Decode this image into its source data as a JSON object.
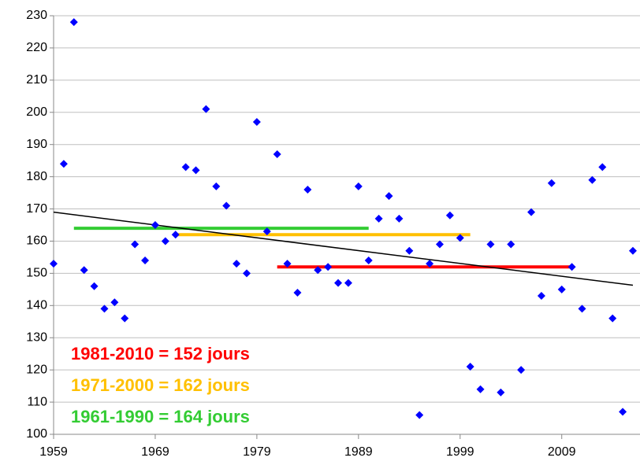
{
  "chart_data": {
    "type": "scatter",
    "x": [
      1959,
      1960,
      1961,
      1962,
      1963,
      1964,
      1965,
      1966,
      1967,
      1968,
      1969,
      1970,
      1971,
      1972,
      1973,
      1974,
      1975,
      1976,
      1977,
      1978,
      1979,
      1980,
      1981,
      1982,
      1983,
      1984,
      1985,
      1986,
      1987,
      1988,
      1989,
      1990,
      1991,
      1992,
      1993,
      1994,
      1995,
      1996,
      1997,
      1998,
      1999,
      2000,
      2001,
      2002,
      2003,
      2004,
      2005,
      2006,
      2007,
      2008,
      2009,
      2010,
      2011,
      2012,
      2013,
      2014,
      2015,
      2016
    ],
    "values": [
      153,
      184,
      228,
      151,
      146,
      139,
      141,
      136,
      159,
      154,
      165,
      160,
      162,
      183,
      182,
      201,
      177,
      171,
      153,
      150,
      197,
      163,
      187,
      153,
      144,
      176,
      151,
      152,
      147,
      147,
      177,
      154,
      167,
      174,
      167,
      157,
      106,
      153,
      159,
      168,
      161,
      121,
      114,
      159,
      113,
      159,
      120,
      169,
      143,
      178,
      145,
      152,
      139,
      179,
      183,
      136,
      107,
      157
    ],
    "color": "#0000ff",
    "trend": {
      "x": [
        1959,
        2016
      ],
      "values": [
        169,
        146.3
      ],
      "color": "#000000"
    },
    "normals": [
      {
        "name": "1981-2010 = 152 jours",
        "color": "#ff0000",
        "x": [
          1981,
          2010
        ],
        "value": 152
      },
      {
        "name": "1971-2000 = 162 jours",
        "color": "#ffc000",
        "x": [
          1971,
          2000
        ],
        "value": 162
      },
      {
        "name": "1961-1990 = 164 jours",
        "color": "#33cc33",
        "x": [
          1961,
          1990
        ],
        "value": 164
      }
    ],
    "xlim": [
      1959,
      2016.7
    ],
    "xticks": [
      1959,
      1969,
      1979,
      1989,
      1999,
      2009
    ],
    "ylim": [
      100,
      230
    ],
    "yticks": [
      100,
      110,
      120,
      130,
      140,
      150,
      160,
      170,
      180,
      190,
      200,
      210,
      220,
      230
    ],
    "grid": true
  }
}
